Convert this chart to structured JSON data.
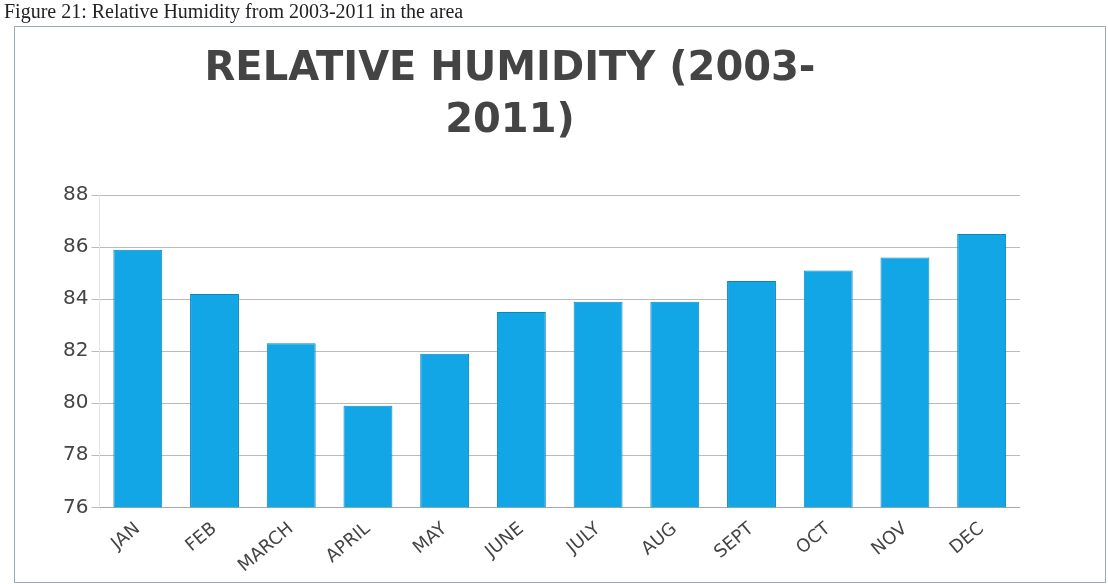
{
  "chart_data": {
    "type": "bar",
    "title": "RELATIVE HUMIDITY (2003-2011)",
    "annotations": [
      "Figure 21: Relative Humidity from 2003-2011 in the area"
    ],
    "categories": [
      "JAN",
      "FEB",
      "MARCH",
      "APRIL",
      "MAY",
      "JUNE",
      "JULY",
      "AUG",
      "SEPT",
      "OCT",
      "NOV",
      "DEC"
    ],
    "values": [
      85.9,
      84.2,
      82.3,
      79.9,
      81.9,
      83.5,
      83.9,
      83.9,
      84.7,
      85.1,
      85.6,
      86.5
    ],
    "color": "#12a6e6",
    "ylim": [
      76,
      88
    ],
    "yticks": [
      76,
      78,
      80,
      82,
      84,
      86,
      88
    ],
    "grid": "y",
    "legend": false
  }
}
